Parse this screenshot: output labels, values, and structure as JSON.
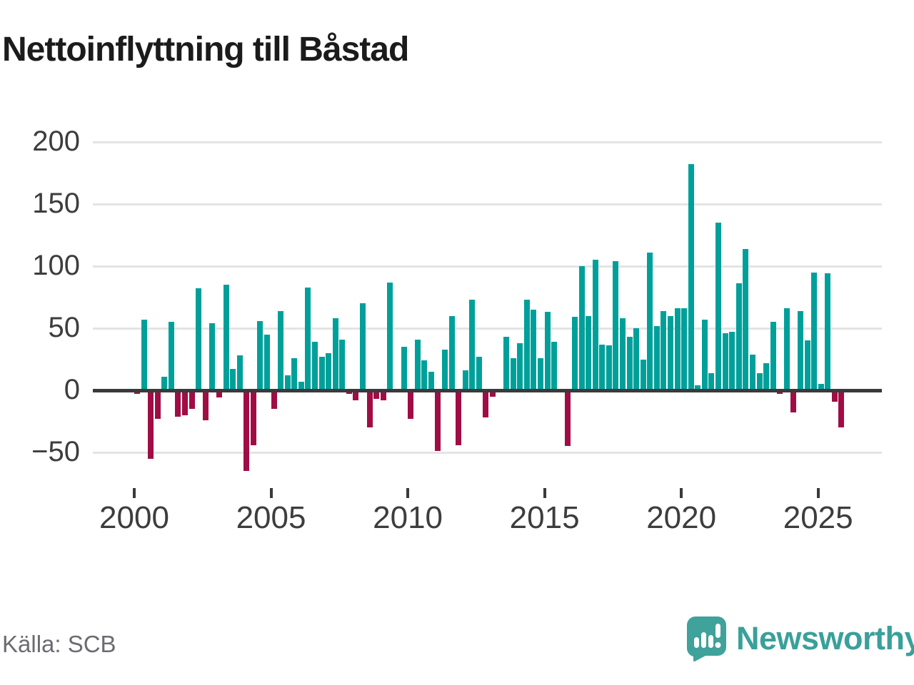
{
  "title": "Nettoinflyttning till Båstad",
  "source": "Källa: SCB",
  "branding": {
    "name": "Newsworthy",
    "logo_color": "#3fa29b",
    "logo_icon": "speech-bubble-with-bar-chart-and-exclamation"
  },
  "chart_data": {
    "type": "bar",
    "title": "Nettoinflyttning till Båstad",
    "frequency": "quarterly",
    "start_period": "2000 Q1",
    "end_period": "2025 Q4",
    "values": [
      -3,
      57,
      -55,
      -23,
      11,
      55,
      -21,
      -20,
      -15,
      82,
      -24,
      54,
      -6,
      85,
      17,
      28,
      -65,
      -44,
      56,
      45,
      -15,
      64,
      12,
      26,
      7,
      83,
      39,
      27,
      30,
      58,
      41,
      -3,
      -8,
      70,
      -30,
      -7,
      -8,
      87,
      -2,
      35,
      -23,
      41,
      24,
      15,
      -49,
      33,
      60,
      -44,
      16,
      73,
      27,
      -22,
      -5,
      0,
      43,
      26,
      38,
      73,
      65,
      26,
      63,
      39,
      0,
      -45,
      59,
      100,
      60,
      105,
      37,
      36,
      104,
      58,
      43,
      50,
      25,
      111,
      52,
      64,
      60,
      66,
      66,
      182,
      4,
      57,
      14,
      135,
      46,
      47,
      86,
      114,
      29,
      14,
      22,
      55,
      -3,
      66,
      -18,
      64,
      40,
      95,
      5,
      94,
      -9,
      -30
    ],
    "x_tick_labels": [
      "2000",
      "2005",
      "2010",
      "2015",
      "2020",
      "2025"
    ],
    "y_ticks": [
      200,
      150,
      100,
      50,
      0,
      -50
    ],
    "ylim": [
      -75,
      215
    ],
    "grid": "horizontal",
    "legend": "none",
    "positive_color": "#00a09a",
    "negative_color": "#a00d45",
    "xlabel": "",
    "ylabel": ""
  }
}
